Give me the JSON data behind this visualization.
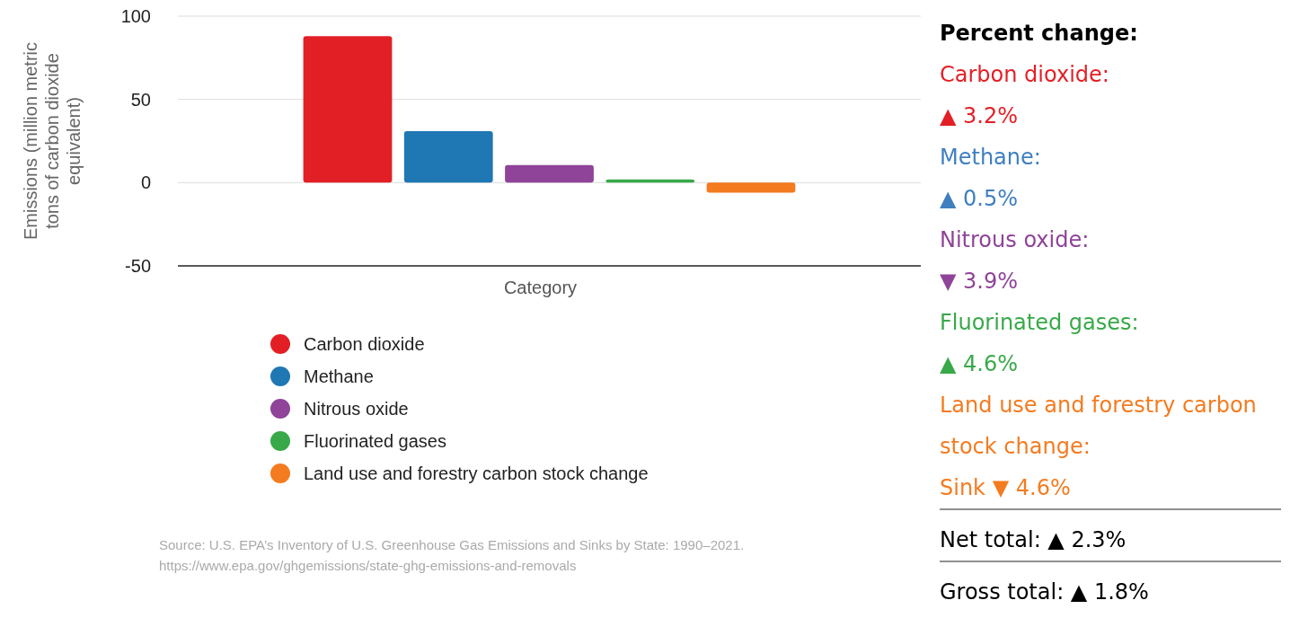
{
  "chart_data": [
    {
      "type": "bar",
      "ylabel": "Emissions (million metric tons of carbon dioxide equivalent)",
      "xlabel": "Category",
      "categories": [
        null
      ],
      "series": [
        {
          "name": "Carbon dioxide",
          "color": "#e31f26",
          "values": [
            88
          ]
        },
        {
          "name": "Methane",
          "color": "#1f77b4",
          "values": [
            31
          ]
        },
        {
          "name": "Nitrous oxide",
          "color": "#8f4399",
          "values": [
            10.5
          ]
        },
        {
          "name": "Fluorinated gases",
          "color": "#38a949",
          "values": [
            2
          ]
        },
        {
          "name": "Land use and forestry carbon stock change",
          "color": "#f47b20",
          "values": [
            -6
          ]
        }
      ],
      "ylim": [
        -50,
        100
      ],
      "yticks": [
        -50,
        0,
        50,
        100
      ],
      "grid": "y",
      "legend": "bottom",
      "annotations": [
        "Source: U.S. EPA’s Inventory of U.S. Greenhouse Gas Emissions and Sinks by State: 1990–2021.",
        "https://www.epa.gov/ghgemissions/state-ghg-emissions-and-removals"
      ]
    },
    {
      "type": "other",
      "title": "Percent change:",
      "annotations": [
        "Carbon dioxide:",
        "▲ 3.2%",
        "Methane:",
        "▲ 0.5%",
        "Nitrous oxide:",
        "▼ 3.9%",
        "Fluorinated gases:",
        "▲ 4.6%",
        "Land use and forestry carbon stock change:",
        "Sink ▼ 4.6%",
        "Net total: ▲ 2.3%",
        "Gross total: ▲ 1.8%"
      ],
      "colors": [
        "#e31f26",
        "#e31f26",
        "#3f7fc0",
        "#3f7fc0",
        "#8f4399",
        "#8f4399",
        "#38a949",
        "#38a949",
        "#f47b20",
        "#f47b20",
        "#000000",
        "#000000"
      ]
    }
  ]
}
